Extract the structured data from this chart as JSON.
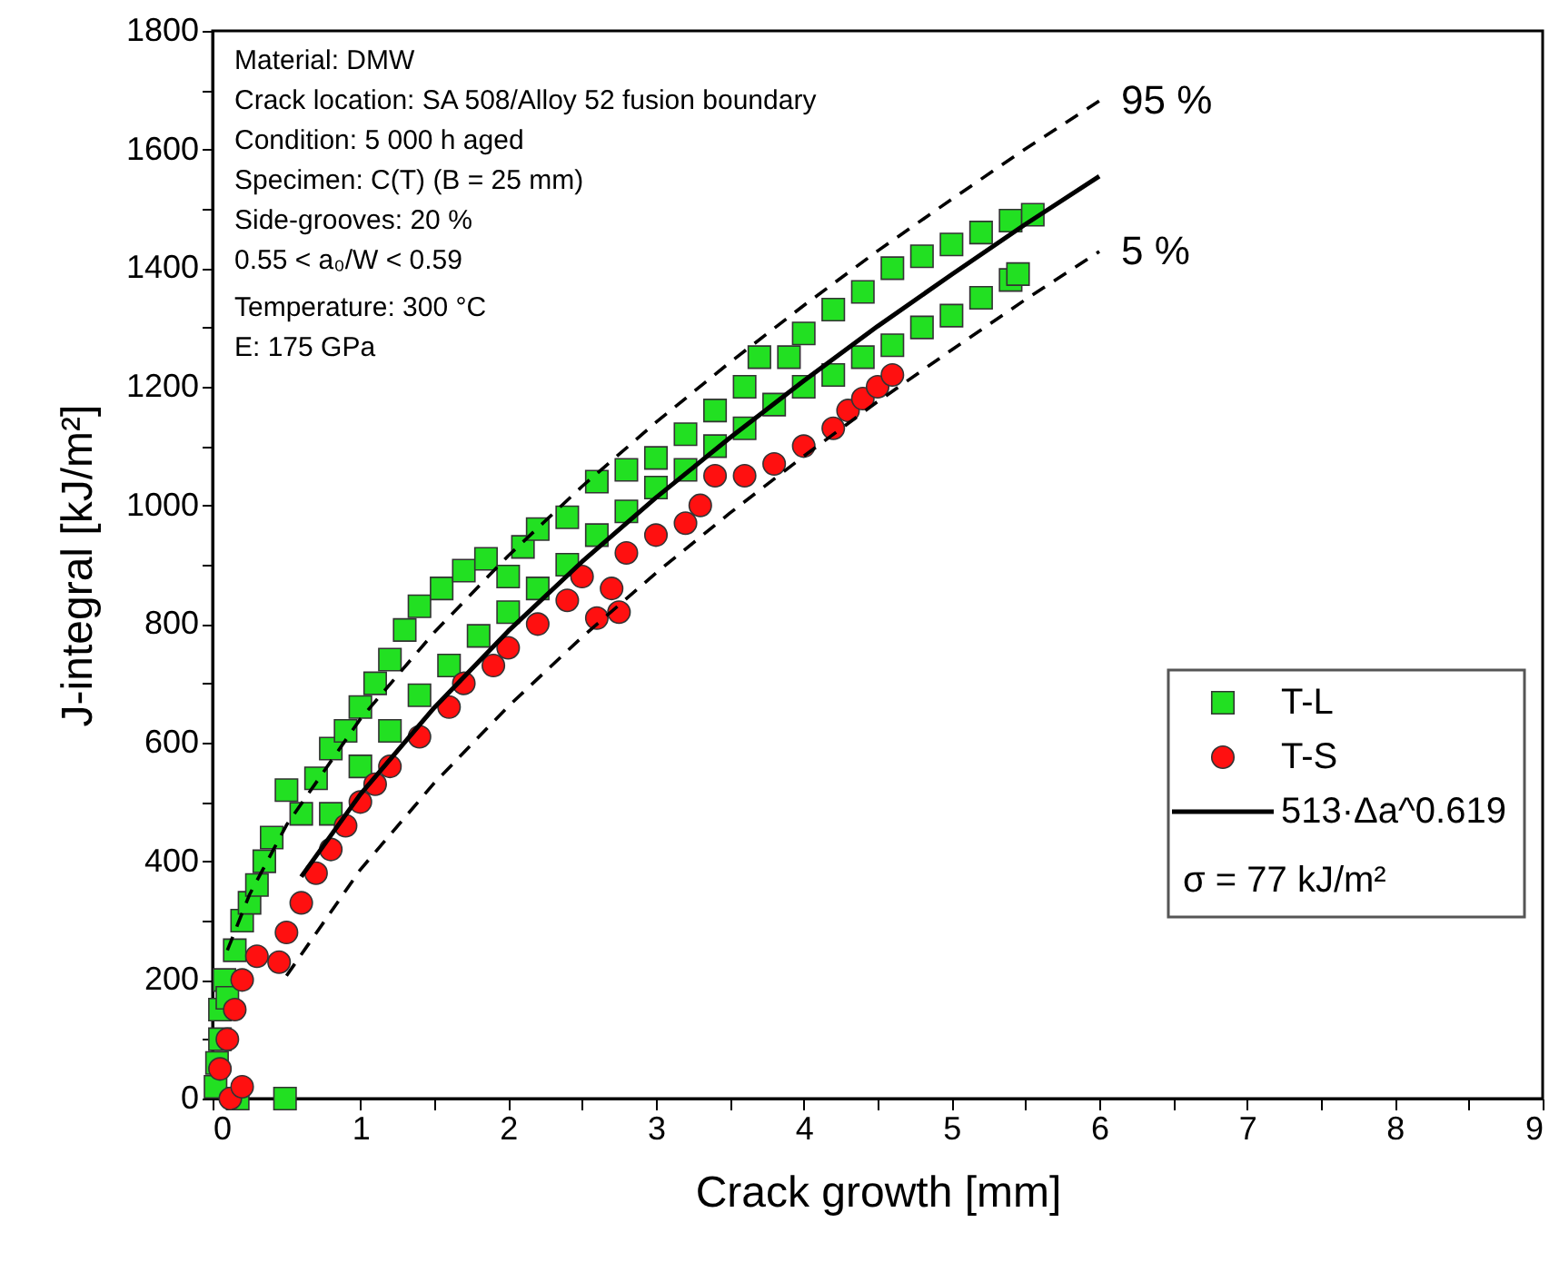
{
  "chart_data": {
    "type": "scatter",
    "xlabel": "Crack growth [mm]",
    "ylabel": "J-integral [kJ/m²]",
    "xlim": [
      0,
      9
    ],
    "ylim": [
      0,
      1800
    ],
    "xticks": [
      0,
      {
        "value": 0.5,
        "label": null
      },
      1,
      {
        "value": 1.5,
        "label": null
      },
      2,
      {
        "value": 2.5,
        "label": null
      },
      3,
      {
        "value": 3.5,
        "label": null
      },
      4,
      {
        "value": 4.5,
        "label": null
      },
      5,
      {
        "value": 5.5,
        "label": null
      },
      6,
      {
        "value": 6.5,
        "label": null
      },
      7,
      {
        "value": 7.5,
        "label": null
      },
      8,
      {
        "value": 8.5,
        "label": null
      },
      9
    ],
    "yticks": [
      0,
      {
        "value": 100,
        "label": null
      },
      200,
      {
        "value": 300,
        "label": null
      },
      400,
      {
        "value": 500,
        "label": null
      },
      600,
      {
        "value": 700,
        "label": null
      },
      800,
      {
        "value": 900,
        "label": null
      },
      1000,
      {
        "value": 1100,
        "label": null
      },
      1200,
      {
        "value": 1300,
        "label": null
      },
      1400,
      {
        "value": 1500,
        "label": null
      },
      1600,
      {
        "value": 1700,
        "label": null
      },
      1800
    ],
    "grid": false,
    "legend": "bottom right",
    "legend_title": "σ = 77 kJ/m²",
    "annotations": [
      "Material: DMW",
      "Crack location: SA 508/Alloy 52 fusion boundary",
      "Condition: 5 000 h aged",
      "Specimen: C(T) (B = 25 mm)",
      "Side-grooves: 20 %",
      "0.55 < a₀/W < 0.59",
      "Temperature: 300 °C",
      "E: 175 GPa"
    ],
    "series": [
      {
        "name": "T-L",
        "marker": "square",
        "color": "#22e022",
        "x": [
          0.02,
          0.03,
          0.05,
          0.05,
          0.08,
          0.1,
          0.15,
          0.17,
          0.2,
          0.25,
          0.3,
          0.35,
          0.4,
          0.5,
          0.49,
          0.6,
          0.7,
          0.8,
          0.9,
          1.0,
          1.1,
          1.2,
          1.3,
          1.4,
          1.55,
          1.7,
          1.85,
          2.0,
          2.1,
          2.2,
          2.4,
          2.6,
          2.8,
          3.0,
          3.2,
          3.4,
          3.6,
          3.7,
          3.9,
          4.0,
          4.2,
          4.4,
          4.6,
          4.8,
          5.0,
          5.2,
          5.4,
          5.55,
          0.8,
          1.0,
          1.2,
          1.4,
          1.6,
          1.8,
          2.0,
          2.2,
          2.4,
          2.6,
          2.8,
          3.0,
          3.2,
          3.4,
          3.6,
          3.8,
          4.0,
          4.2,
          4.4,
          4.6,
          4.8,
          5.0,
          5.2,
          5.4,
          5.45
        ],
        "values": [
          20,
          60,
          100,
          150,
          200,
          170,
          250,
          0,
          300,
          330,
          360,
          400,
          440,
          520,
          0,
          480,
          540,
          590,
          620,
          660,
          700,
          740,
          790,
          830,
          860,
          890,
          910,
          880,
          930,
          960,
          980,
          1040,
          1060,
          1080,
          1120,
          1160,
          1200,
          1250,
          1250,
          1290,
          1330,
          1360,
          1400,
          1420,
          1440,
          1460,
          1480,
          1490,
          480,
          560,
          620,
          680,
          730,
          780,
          820,
          860,
          900,
          950,
          990,
          1030,
          1060,
          1100,
          1130,
          1170,
          1200,
          1220,
          1250,
          1270,
          1300,
          1320,
          1350,
          1380,
          1390
        ]
      },
      {
        "name": "T-S",
        "marker": "circle",
        "color": "#ff1010",
        "x": [
          0.05,
          0.1,
          0.12,
          0.15,
          0.2,
          0.2,
          0.3,
          0.45,
          0.5,
          0.6,
          0.7,
          0.8,
          0.9,
          1.0,
          1.1,
          1.2,
          1.4,
          1.6,
          1.7,
          1.9,
          2.0,
          2.2,
          2.4,
          2.5,
          2.6,
          2.7,
          2.75,
          2.8,
          3.0,
          3.2,
          3.3,
          3.4,
          3.6,
          3.8,
          4.0,
          4.2,
          4.3,
          4.4,
          4.5,
          4.6
        ],
        "values": [
          50,
          100,
          0,
          150,
          200,
          20,
          240,
          230,
          280,
          330,
          380,
          420,
          460,
          500,
          530,
          560,
          610,
          660,
          700,
          730,
          760,
          800,
          840,
          880,
          810,
          860,
          820,
          920,
          950,
          970,
          1000,
          1050,
          1050,
          1070,
          1100,
          1130,
          1160,
          1180,
          1200,
          1220
        ]
      },
      {
        "name": "513·Δa^0.619",
        "type": "line",
        "line_style": "solid",
        "color": "#000000",
        "x": [
          0.6,
          1,
          1.5,
          2,
          2.5,
          3,
          3.5,
          4,
          4.5,
          5,
          5.5,
          6
        ],
        "values": [
          374,
          513,
          659,
          788,
          905,
          1013,
          1114,
          1210,
          1302,
          1389,
          1474,
          1555
        ]
      },
      {
        "name": "95 %",
        "type": "line",
        "line_style": "dashed",
        "color": "#000000",
        "x": [
          0.1,
          0.25,
          0.5,
          1,
          1.5,
          2,
          2.5,
          3,
          3.5,
          4,
          4.5,
          5,
          5.5,
          6
        ],
        "values": [
          250,
          344,
          461,
          640,
          786,
          915,
          1032,
          1140,
          1241,
          1337,
          1429,
          1516,
          1601,
          1682
        ]
      },
      {
        "name": "5 %",
        "type": "line",
        "line_style": "dashed",
        "color": "#000000",
        "x": [
          0.5,
          1,
          1.5,
          2,
          2.5,
          3,
          3.5,
          4,
          4.5,
          5,
          5.5,
          6
        ],
        "values": [
          207,
          386,
          532,
          661,
          778,
          886,
          987,
          1083,
          1175,
          1262,
          1347,
          1428
        ]
      }
    ]
  }
}
